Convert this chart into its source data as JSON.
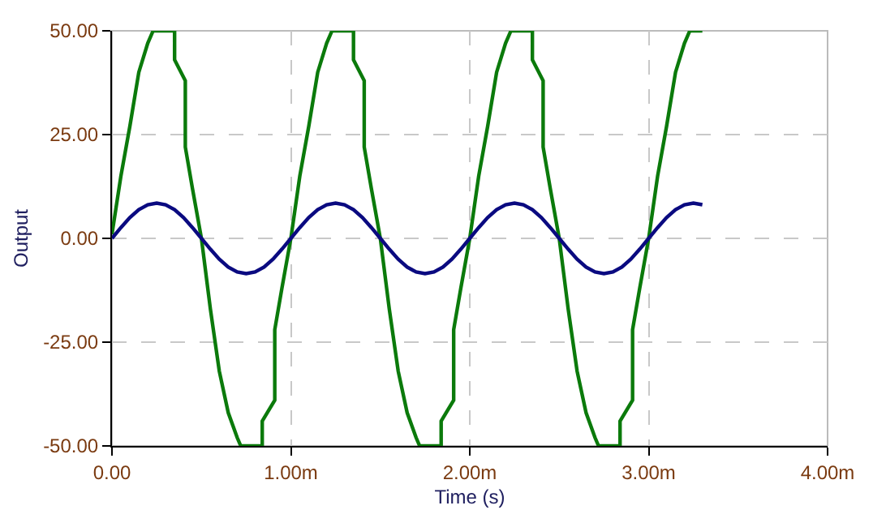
{
  "chart_data": {
    "type": "line",
    "xlabel": "Time (s)",
    "ylabel": "Output",
    "xlim": [
      0,
      4
    ],
    "ylim": [
      -50,
      50
    ],
    "xticks": [
      {
        "value": 0,
        "label": "0.00"
      },
      {
        "value": 1,
        "label": "1.00m"
      },
      {
        "value": 2,
        "label": "2.00m"
      },
      {
        "value": 3,
        "label": "3.00m"
      },
      {
        "value": 4,
        "label": "4.00m"
      }
    ],
    "yticks": [
      {
        "value": -50,
        "label": "-50.00"
      },
      {
        "value": -25,
        "label": "-25.00"
      },
      {
        "value": 0,
        "label": "0.00"
      },
      {
        "value": 25,
        "label": "25.00"
      },
      {
        "value": 50,
        "label": "50.00"
      }
    ],
    "grid": true,
    "marker": "none",
    "line_style": "solid",
    "series": [
      {
        "color": "#0b7a0b",
        "x": [
          0,
          0.05,
          0.1,
          0.15,
          0.2,
          0.23,
          0.35,
          0.35,
          0.41,
          0.41,
          0.45,
          0.5,
          0.55,
          0.6,
          0.65,
          0.7,
          0.72,
          0.84,
          0.84,
          0.91,
          0.91,
          0.95,
          1,
          1.05,
          1.1,
          1.15,
          1.2,
          1.23,
          1.35,
          1.35,
          1.41,
          1.41,
          1.45,
          1.5,
          1.55,
          1.6,
          1.65,
          1.7,
          1.72,
          1.84,
          1.84,
          1.91,
          1.91,
          1.95,
          2,
          2.05,
          2.1,
          2.15,
          2.2,
          2.23,
          2.35,
          2.35,
          2.41,
          2.41,
          2.45,
          2.5,
          2.55,
          2.6,
          2.65,
          2.7,
          2.72,
          2.84,
          2.84,
          2.91,
          2.91,
          2.95,
          3,
          3.05,
          3.1,
          3.15,
          3.2,
          3.23,
          3.3
        ],
        "values": [
          1,
          15,
          27,
          40,
          47,
          50,
          50,
          43,
          38,
          22,
          12,
          0,
          -17,
          -32,
          -42,
          -48,
          -50,
          -50,
          -44,
          -39,
          -22,
          -12,
          0,
          15,
          27,
          40,
          47,
          50,
          50,
          43,
          38,
          22,
          12,
          0,
          -17,
          -32,
          -42,
          -48,
          -50,
          -50,
          -44,
          -39,
          -22,
          -12,
          0,
          15,
          27,
          40,
          47,
          50,
          50,
          43,
          38,
          22,
          12,
          0,
          -17,
          -32,
          -42,
          -48,
          -50,
          -50,
          -44,
          -39,
          -22,
          -12,
          0,
          15,
          27,
          40,
          47,
          50,
          50
        ]
      },
      {
        "color": "#0a0a80",
        "x": [
          0,
          0.05,
          0.1,
          0.15,
          0.2,
          0.25,
          0.3,
          0.35,
          0.4,
          0.45,
          0.5,
          0.55,
          0.6,
          0.65,
          0.7,
          0.75,
          0.8,
          0.85,
          0.9,
          0.95,
          1,
          1.05,
          1.1,
          1.15,
          1.2,
          1.25,
          1.3,
          1.35,
          1.4,
          1.45,
          1.5,
          1.55,
          1.6,
          1.65,
          1.7,
          1.75,
          1.8,
          1.85,
          1.9,
          1.95,
          2,
          2.05,
          2.1,
          2.15,
          2.2,
          2.25,
          2.3,
          2.35,
          2.4,
          2.45,
          2.5,
          2.55,
          2.6,
          2.65,
          2.7,
          2.75,
          2.8,
          2.85,
          2.9,
          2.95,
          3,
          3.05,
          3.1,
          3.15,
          3.2,
          3.25,
          3.3
        ],
        "values": [
          0,
          2.6,
          5,
          6.9,
          8.1,
          8.5,
          8.1,
          6.9,
          5,
          2.6,
          0,
          -2.6,
          -5,
          -6.9,
          -8.1,
          -8.5,
          -8.1,
          -6.9,
          -5,
          -2.6,
          0,
          2.6,
          5,
          6.9,
          8.1,
          8.5,
          8.1,
          6.9,
          5,
          2.6,
          0,
          -2.6,
          -5,
          -6.9,
          -8.1,
          -8.5,
          -8.1,
          -6.9,
          -5,
          -2.6,
          0,
          2.6,
          5,
          6.9,
          8.1,
          8.5,
          8.1,
          6.9,
          5,
          2.6,
          0,
          -2.6,
          -5,
          -6.9,
          -8.1,
          -8.5,
          -8.1,
          -6.9,
          -5,
          -2.6,
          0,
          2.6,
          5,
          6.9,
          8.1,
          8.5,
          8.1
        ]
      }
    ]
  }
}
